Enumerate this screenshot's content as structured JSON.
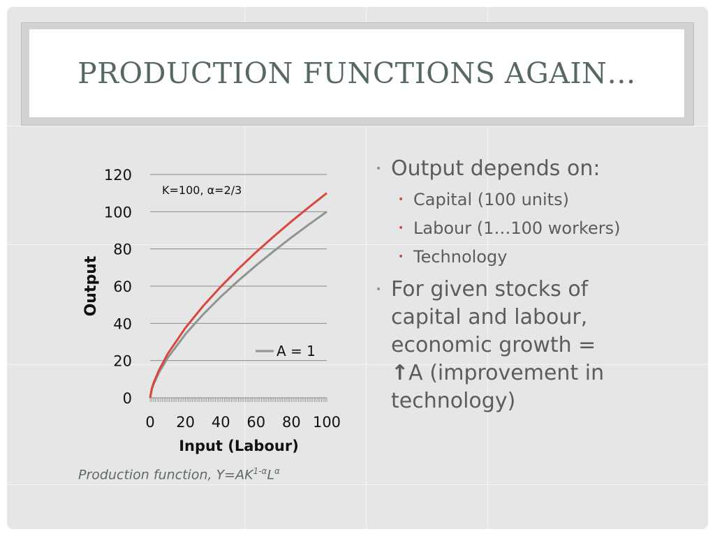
{
  "slide": {
    "title": "PRODUCTION FUNCTIONS AGAIN…",
    "caption_prefix": "Production function, Y=AK",
    "caption_exp1": "1-α",
    "caption_mid": "L",
    "caption_exp2": "α"
  },
  "bullets": {
    "b1": "Output depends on:",
    "sub": [
      "Capital (100 units)",
      "Labour (1…100 workers)",
      "Technology"
    ],
    "b2_lines": [
      "For given stocks of",
      "capital and labour,",
      "economic growth =",
      "A (improvement  in",
      "technology)"
    ],
    "arrow_icon": "arrow-up-icon"
  },
  "chart_data": {
    "type": "line",
    "title": "",
    "xlabel": "Input (Labour)",
    "ylabel": "Output",
    "xlim": [
      0,
      100
    ],
    "ylim": [
      0,
      120
    ],
    "x_ticks": [
      "0",
      "20",
      "40",
      "60",
      "80",
      "100"
    ],
    "y_ticks": [
      "0",
      "20",
      "40",
      "60",
      "80",
      "100",
      "120"
    ],
    "annotation": "K=100, α=2/3",
    "legend_position": "inside-right",
    "x": [
      0,
      1,
      2,
      5,
      10,
      20,
      30,
      40,
      50,
      60,
      70,
      80,
      90,
      100
    ],
    "series": [
      {
        "name": "A = 1",
        "color": "#8c9690",
        "values": [
          0,
          4.64,
          7.37,
          13.57,
          21.54,
          34.2,
          44.81,
          54.29,
          63.0,
          71.14,
          78.83,
          86.18,
          93.22,
          100.0
        ]
      },
      {
        "name": "",
        "color": "#d9463c",
        "values": [
          0,
          5.1,
          8.1,
          14.9,
          23.7,
          37.6,
          49.3,
          59.7,
          69.3,
          78.3,
          86.7,
          94.8,
          102.5,
          110.0
        ]
      }
    ],
    "grid": true
  }
}
